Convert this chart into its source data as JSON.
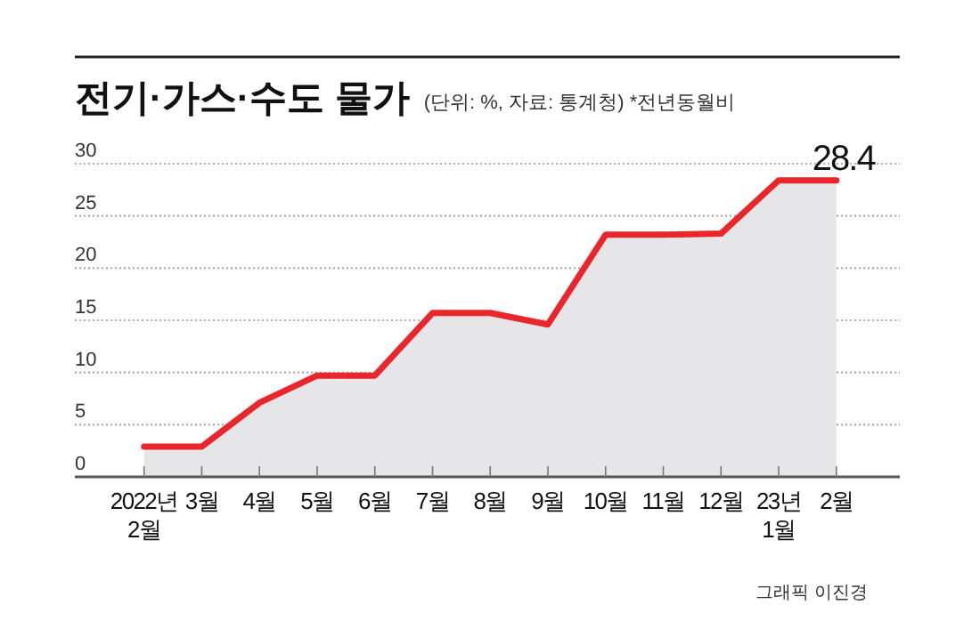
{
  "chart_data": {
    "type": "area",
    "title": "전기·가스·수도 물가",
    "subtitle": "(단위: %, 자료: 통계청)  *전년동월비",
    "categories": [
      "2022년\n2월",
      "3월",
      "4월",
      "5월",
      "6월",
      "7월",
      "8월",
      "9월",
      "10월",
      "11월",
      "12월",
      "23년\n1월",
      "2월"
    ],
    "series": [
      {
        "color": "#e8262b",
        "values": [
          2.9,
          2.9,
          7.1,
          9.7,
          9.7,
          15.7,
          15.7,
          14.6,
          23.2,
          23.2,
          23.3,
          28.4,
          28.4
        ],
        "value_labels": [
          null,
          null,
          null,
          null,
          null,
          null,
          null,
          null,
          null,
          null,
          null,
          null,
          "28.4"
        ]
      }
    ],
    "ylim": [
      0,
      30
    ],
    "yticks": [
      0,
      5,
      10,
      15,
      20,
      25,
      30
    ],
    "grid": "y",
    "annotations": [
      "그래픽 이진경"
    ]
  }
}
